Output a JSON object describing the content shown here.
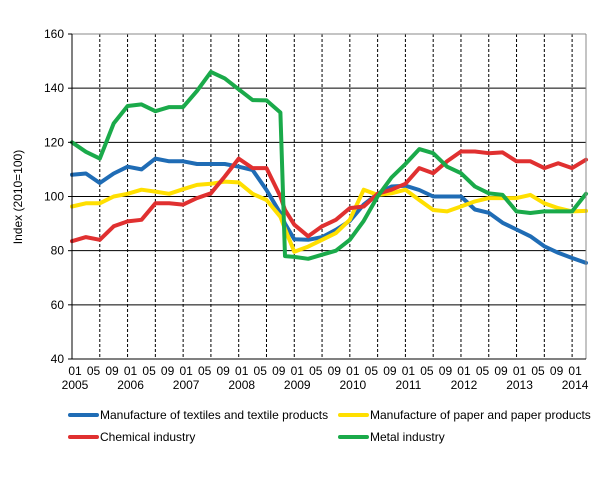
{
  "chart_data": {
    "type": "line",
    "title": "",
    "xlabel": "",
    "ylabel": "Index (2010=100)",
    "ylim": [
      40,
      160
    ],
    "yticks": [
      40,
      60,
      80,
      100,
      120,
      140,
      160
    ],
    "grid": true,
    "x_month_labels": [
      "01",
      "05",
      "09"
    ],
    "x_years": [
      "2005",
      "2006",
      "2007",
      "2008",
      "2009",
      "2010",
      "2011",
      "2012",
      "2013",
      "2014"
    ],
    "x_start": "2005-01",
    "x_end": "2014-04",
    "x": [
      "2005-01",
      "2005-04",
      "2005-07",
      "2005-10",
      "2006-01",
      "2006-04",
      "2006-07",
      "2006-10",
      "2007-01",
      "2007-04",
      "2007-07",
      "2007-10",
      "2008-01",
      "2008-04",
      "2008-07",
      "2008-10",
      "2008-11",
      "2009-01",
      "2009-04",
      "2009-07",
      "2009-10",
      "2010-01",
      "2010-04",
      "2010-07",
      "2010-10",
      "2011-01",
      "2011-04",
      "2011-07",
      "2011-10",
      "2012-01",
      "2012-04",
      "2012-07",
      "2012-10",
      "2013-01",
      "2013-04",
      "2013-07",
      "2013-10",
      "2014-01",
      "2014-04"
    ],
    "legend_position": "bottom",
    "series": [
      {
        "name": "Manufacture of textiles and textile products",
        "color": "#1f6cb5",
        "values": [
          108,
          108.5,
          105,
          108.5,
          111,
          110,
          114,
          113,
          113,
          112,
          112,
          112,
          111,
          109.8,
          102.4,
          93.8,
          90,
          84.2,
          84,
          85,
          87.7,
          91,
          97,
          101,
          103.7,
          104,
          102.4,
          100,
          100,
          100,
          95.2,
          94,
          90.3,
          87.8,
          85.3,
          81.6,
          79.2,
          77.3,
          75.5
        ]
      },
      {
        "name": "Manufacture of paper and paper products",
        "color": "#ffdf00",
        "values": [
          96.3,
          97.5,
          97.5,
          100,
          101,
          102.5,
          101.8,
          101,
          102.7,
          104.3,
          104.7,
          105.5,
          105.2,
          101,
          98.7,
          92.5,
          88,
          79.6,
          81.5,
          84,
          86.5,
          91.4,
          102.5,
          100.6,
          101.2,
          102.5,
          98.7,
          95,
          94.5,
          96.3,
          98.2,
          99.4,
          99.4,
          99.4,
          100.6,
          97.5,
          95.7,
          94.5,
          94.7
        ]
      },
      {
        "name": "Chemical industry",
        "color": "#e03030",
        "values": [
          83.5,
          85,
          84,
          89,
          90.8,
          91.4,
          97.5,
          97.5,
          97,
          99.4,
          101.2,
          107.4,
          114,
          110.5,
          110.5,
          100,
          95,
          89.6,
          85.3,
          89,
          91.4,
          95.7,
          96.3,
          101,
          102.5,
          104.7,
          110.5,
          108.6,
          113,
          116.6,
          116.6,
          116,
          116.3,
          113,
          113,
          110.5,
          112.3,
          110.5,
          113.6
        ]
      },
      {
        "name": "Metal industry",
        "color": "#1aaa4a",
        "values": [
          120,
          116.5,
          114,
          127,
          133.4,
          134,
          131.5,
          133,
          133,
          139,
          146,
          143.6,
          139.6,
          135.6,
          135.5,
          131,
          78,
          77.7,
          77,
          78.5,
          80,
          84,
          91,
          100,
          107,
          112,
          117.5,
          116,
          111,
          108.6,
          103.7,
          101.2,
          100.6,
          94.5,
          93.9,
          94.5,
          94.5,
          94.5,
          101
        ]
      }
    ]
  }
}
